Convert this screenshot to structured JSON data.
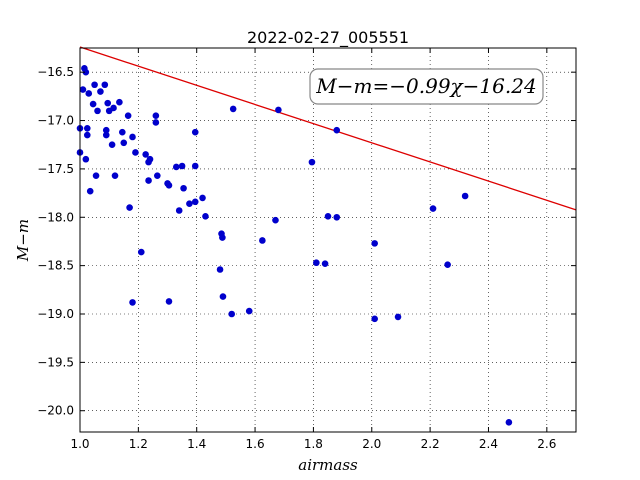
{
  "chart_data": {
    "type": "scatter",
    "title": "2022-02-27_005551",
    "xlabel": "airmass",
    "ylabel": "M−m",
    "xlim": [
      1.0,
      2.7
    ],
    "ylim": [
      -20.22,
      -16.25
    ],
    "y_inverted": true,
    "grid": true,
    "x_ticks": [
      1.0,
      1.2,
      1.4,
      1.6,
      1.8,
      2.0,
      2.2,
      2.4,
      2.6
    ],
    "x_tick_labels": [
      "1.0",
      "1.2",
      "1.4",
      "1.6",
      "1.8",
      "2.0",
      "2.2",
      "2.4",
      "2.6"
    ],
    "y_ticks": [
      -16.5,
      -17.0,
      -17.5,
      -18.0,
      -18.5,
      -19.0,
      -19.5,
      -20.0
    ],
    "y_tick_labels": [
      "−16.5",
      "−17.0",
      "−17.5",
      "−18.0",
      "−18.5",
      "−19.0",
      "−19.5",
      "−20.0"
    ],
    "marker_color": "#0000cc",
    "fit_color": "#dd0000",
    "fit": {
      "slope": -0.99,
      "intercept": -16.24,
      "label": "M−m=−0.99χ−16.24"
    },
    "points": [
      [
        1.0,
        -17.08
      ],
      [
        1.0,
        -17.33
      ],
      [
        1.01,
        -16.68
      ],
      [
        1.015,
        -16.46
      ],
      [
        1.02,
        -16.5
      ],
      [
        1.02,
        -17.4
      ],
      [
        1.025,
        -17.08
      ],
      [
        1.025,
        -17.15
      ],
      [
        1.03,
        -16.72
      ],
      [
        1.035,
        -17.73
      ],
      [
        1.045,
        -16.83
      ],
      [
        1.05,
        -16.63
      ],
      [
        1.055,
        -17.57
      ],
      [
        1.06,
        -16.9
      ],
      [
        1.07,
        -16.7
      ],
      [
        1.085,
        -16.63
      ],
      [
        1.09,
        -17.1
      ],
      [
        1.09,
        -17.15
      ],
      [
        1.095,
        -16.82
      ],
      [
        1.1,
        -16.9
      ],
      [
        1.11,
        -17.25
      ],
      [
        1.115,
        -16.87
      ],
      [
        1.12,
        -17.57
      ],
      [
        1.135,
        -16.81
      ],
      [
        1.145,
        -17.12
      ],
      [
        1.15,
        -17.23
      ],
      [
        1.165,
        -16.95
      ],
      [
        1.17,
        -17.9
      ],
      [
        1.18,
        -17.17
      ],
      [
        1.18,
        -18.88
      ],
      [
        1.19,
        -17.33
      ],
      [
        1.21,
        -18.36
      ],
      [
        1.225,
        -17.35
      ],
      [
        1.235,
        -17.43
      ],
      [
        1.235,
        -17.62
      ],
      [
        1.24,
        -17.4
      ],
      [
        1.26,
        -16.95
      ],
      [
        1.26,
        -17.02
      ],
      [
        1.265,
        -17.57
      ],
      [
        1.3,
        -17.65
      ],
      [
        1.305,
        -17.67
      ],
      [
        1.305,
        -18.87
      ],
      [
        1.33,
        -17.48
      ],
      [
        1.34,
        -17.93
      ],
      [
        1.35,
        -17.47
      ],
      [
        1.355,
        -17.7
      ],
      [
        1.375,
        -17.86
      ],
      [
        1.395,
        -17.12
      ],
      [
        1.395,
        -17.47
      ],
      [
        1.395,
        -17.84
      ],
      [
        1.42,
        -17.8
      ],
      [
        1.43,
        -17.99
      ],
      [
        1.48,
        -18.54
      ],
      [
        1.485,
        -18.17
      ],
      [
        1.488,
        -18.21
      ],
      [
        1.49,
        -18.82
      ],
      [
        1.52,
        -19.0
      ],
      [
        1.525,
        -16.88
      ],
      [
        1.58,
        -18.97
      ],
      [
        1.625,
        -18.24
      ],
      [
        1.67,
        -18.03
      ],
      [
        1.68,
        -16.89
      ],
      [
        1.795,
        -17.43
      ],
      [
        1.81,
        -18.47
      ],
      [
        1.84,
        -18.48
      ],
      [
        1.85,
        -17.99
      ],
      [
        1.88,
        -17.1
      ],
      [
        1.88,
        -18.0
      ],
      [
        2.01,
        -18.27
      ],
      [
        2.01,
        -19.05
      ],
      [
        2.09,
        -19.03
      ],
      [
        2.21,
        -17.91
      ],
      [
        2.26,
        -18.49
      ],
      [
        2.32,
        -17.78
      ],
      [
        2.47,
        -20.12
      ]
    ]
  }
}
